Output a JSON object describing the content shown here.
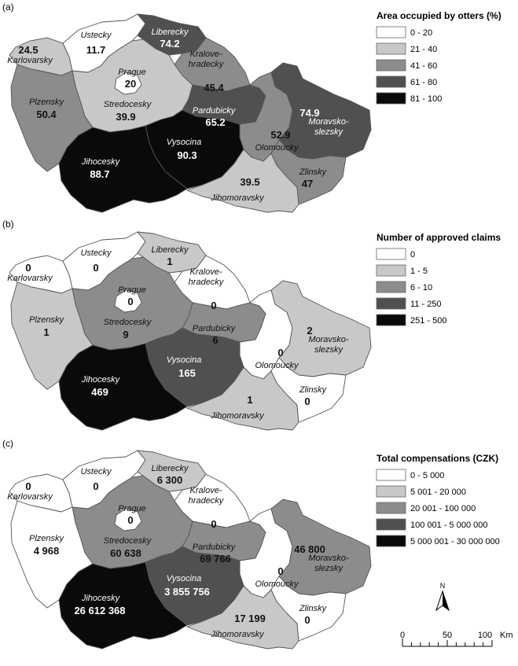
{
  "panels": [
    {
      "id": "a",
      "label": "(a)",
      "legend_title": "Area occupied by otters (%)",
      "legend": [
        {
          "label": "0 - 20",
          "color": "#ffffff"
        },
        {
          "label": "21 - 40",
          "color": "#c8c8c8"
        },
        {
          "label": "41 - 60",
          "color": "#8c8c8c"
        },
        {
          "label": "61 - 80",
          "color": "#505050"
        },
        {
          "label": "81 - 100",
          "color": "#0a0a0a"
        }
      ],
      "regions": {
        "karlovarsky": {
          "name": "Karlovarsky",
          "value": "24.5",
          "class": 1
        },
        "ustecky": {
          "name": "Ustecky",
          "value": "11.7",
          "class": 0
        },
        "liberecky": {
          "name": "Liberecky",
          "value": "74.2",
          "class": 3
        },
        "kralovehradecky": {
          "name": "Kralove-hradecky",
          "value": "45.4",
          "class": 2
        },
        "prague": {
          "name": "Prague",
          "value": "20",
          "class": 0
        },
        "stredocesky": {
          "name": "Stredocesky",
          "value": "39.9",
          "class": 1
        },
        "plzensky": {
          "name": "Plzensky",
          "value": "50.4",
          "class": 2
        },
        "pardubicky": {
          "name": "Pardubicky",
          "value": "65.2",
          "class": 3
        },
        "olomoucky": {
          "name": "Olomoucky",
          "value": "52.9",
          "class": 2
        },
        "moravskoslezsky": {
          "name": "Moravsko-slezsky",
          "value": "74.9",
          "class": 3
        },
        "vysocina": {
          "name": "Vysocina",
          "value": "90.3",
          "class": 4
        },
        "jihocesky": {
          "name": "Jihocesky",
          "value": "88.7",
          "class": 4
        },
        "jihomoravsky": {
          "name": "Jihomoravsky",
          "value": "39.5",
          "class": 1
        },
        "zlinsky": {
          "name": "Zlinsky",
          "value": "47",
          "class": 2
        }
      }
    },
    {
      "id": "b",
      "label": "(b)",
      "legend_title": "Number of approved claims",
      "legend": [
        {
          "label": "0",
          "color": "#ffffff"
        },
        {
          "label": "1 - 5",
          "color": "#c8c8c8"
        },
        {
          "label": "6 - 10",
          "color": "#8c8c8c"
        },
        {
          "label": "11 - 250",
          "color": "#505050"
        },
        {
          "label": "251 - 500",
          "color": "#0a0a0a"
        }
      ],
      "regions": {
        "karlovarsky": {
          "name": "Karlovarsky",
          "value": "0",
          "class": 0
        },
        "ustecky": {
          "name": "Ustecky",
          "value": "0",
          "class": 0
        },
        "liberecky": {
          "name": "Liberecky",
          "value": "1",
          "class": 1
        },
        "kralovehradecky": {
          "name": "Kralove-hradecky",
          "value": "0",
          "class": 0
        },
        "prague": {
          "name": "Prague",
          "value": "0",
          "class": 0
        },
        "stredocesky": {
          "name": "Stredocesky",
          "value": "9",
          "class": 2
        },
        "plzensky": {
          "name": "Plzensky",
          "value": "1",
          "class": 1
        },
        "pardubicky": {
          "name": "Pardubicky",
          "value": "6",
          "class": 2
        },
        "olomoucky": {
          "name": "Olomoucky",
          "value": "0",
          "class": 0
        },
        "moravskoslezsky": {
          "name": "Moravsko-slezsky",
          "value": "2",
          "class": 1
        },
        "vysocina": {
          "name": "Vysocina",
          "value": "165",
          "class": 3
        },
        "jihocesky": {
          "name": "Jihocesky",
          "value": "469",
          "class": 4
        },
        "jihomoravsky": {
          "name": "Jihomoravsky",
          "value": "1",
          "class": 1
        },
        "zlinsky": {
          "name": "Zlinsky",
          "value": "0",
          "class": 0
        }
      }
    },
    {
      "id": "c",
      "label": "(c)",
      "legend_title": "Total compensations (CZK)",
      "legend": [
        {
          "label": "0 - 5 000",
          "color": "#ffffff"
        },
        {
          "label": "5 001 - 20 000",
          "color": "#c8c8c8"
        },
        {
          "label": "20 001 - 100 000",
          "color": "#8c8c8c"
        },
        {
          "label": "100 001 - 5 000 000",
          "color": "#505050"
        },
        {
          "label": "5 000 001 - 30 000 000",
          "color": "#0a0a0a"
        }
      ],
      "regions": {
        "karlovarsky": {
          "name": "Karlovarsky",
          "value": "0",
          "class": 0
        },
        "ustecky": {
          "name": "Ustecky",
          "value": "0",
          "class": 0
        },
        "liberecky": {
          "name": "Liberecky",
          "value": "6 300",
          "class": 1
        },
        "kralovehradecky": {
          "name": "Kralove-hradecky",
          "value": "0",
          "class": 0
        },
        "prague": {
          "name": "Prague",
          "value": "0",
          "class": 0
        },
        "stredocesky": {
          "name": "Stredocesky",
          "value": "60 638",
          "class": 2
        },
        "plzensky": {
          "name": "Plzensky",
          "value": "4 968",
          "class": 0
        },
        "pardubicky": {
          "name": "Pardubicky",
          "value": "69 766",
          "class": 2
        },
        "olomoucky": {
          "name": "Olomoucky",
          "value": "0",
          "class": 0
        },
        "moravskoslezsky": {
          "name": "Moravsko-slezsky",
          "value": "46 800",
          "class": 2
        },
        "vysocina": {
          "name": "Vysocina",
          "value": "3 855 756",
          "class": 3
        },
        "jihocesky": {
          "name": "Jihocesky",
          "value": "26 612 368",
          "class": 4
        },
        "jihomoravsky": {
          "name": "Jihomoravsky",
          "value": "17 199",
          "class": 1
        },
        "zlinsky": {
          "name": "Zlinsky",
          "value": "0",
          "class": 0
        }
      }
    }
  ],
  "north_arrow": {
    "label": "N",
    "icon": "north-arrow-icon"
  },
  "scale_bar": {
    "ticks": [
      "0",
      "50",
      "100"
    ],
    "unit": "Km"
  }
}
